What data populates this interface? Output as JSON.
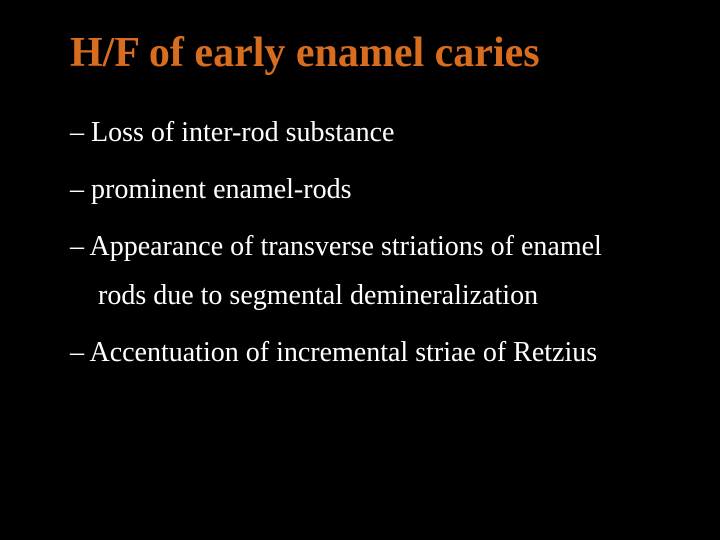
{
  "slide": {
    "background_color": "#000000",
    "title": {
      "text": "H/F of early enamel caries",
      "color": "#d86c1f",
      "fontsize": 42,
      "font_weight": "bold"
    },
    "bullets": [
      {
        "dash": "–",
        "text": "Loss of inter-rod substance"
      },
      {
        "dash": "–",
        "text": " prominent enamel-rods"
      },
      {
        "dash": "–",
        "text": "Appearance of transverse striations of enamel rods due to segmental demineralization"
      },
      {
        "dash": "–",
        "text": "Accentuation of incremental striae of Retzius"
      }
    ],
    "bullet_style": {
      "color": "#ffffff",
      "fontsize": 28,
      "line_height": 1.75
    }
  }
}
